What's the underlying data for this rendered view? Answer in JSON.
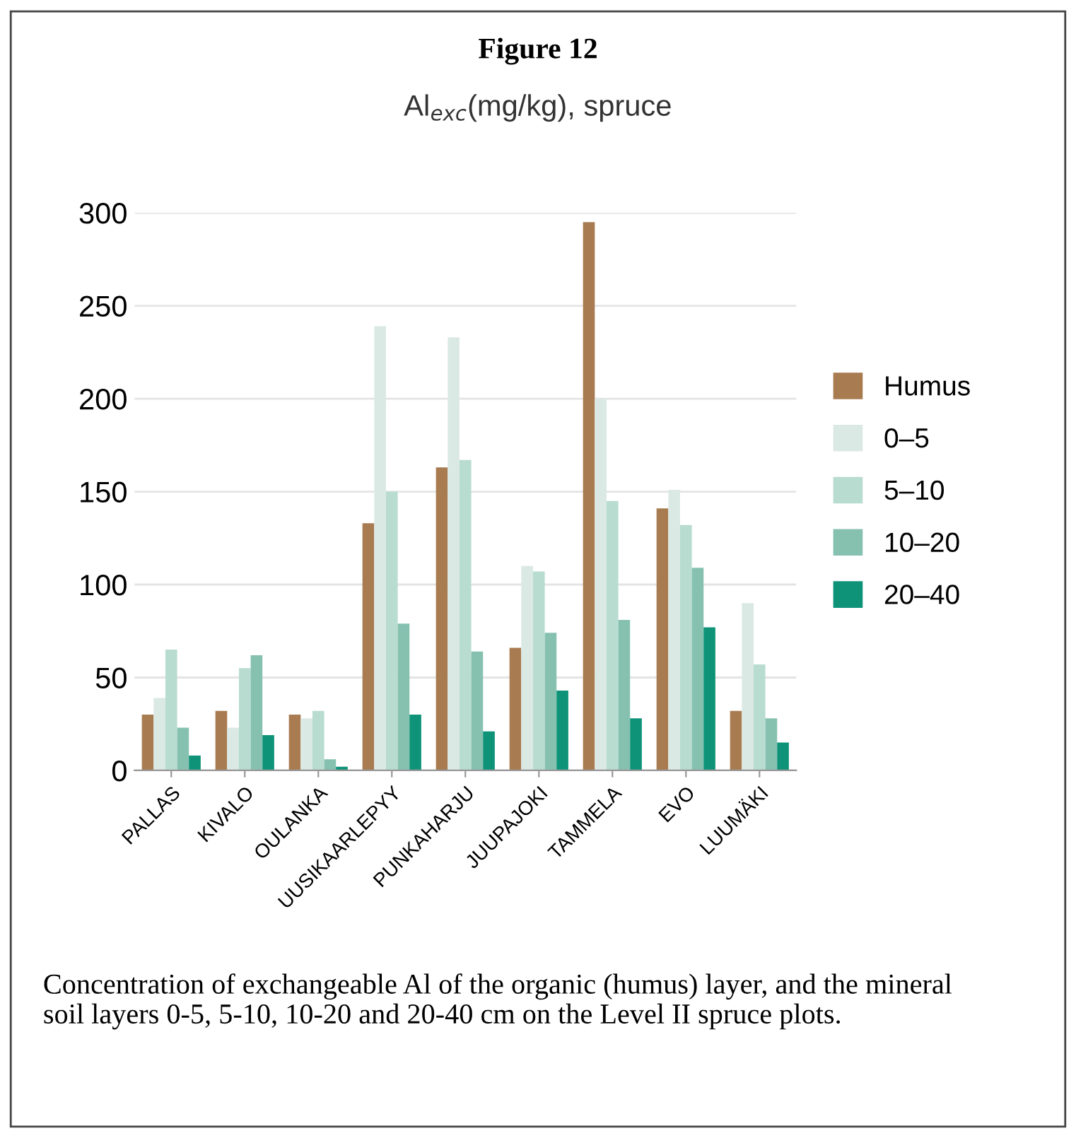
{
  "chart_data": {
    "type": "bar",
    "title": "Figure 12",
    "subtitle": "Al$_{exc}$(mg/kg), spruce",
    "categories": [
      "PALLAS",
      "KIVALO",
      "OULANKA",
      "UUSIKAARLEPYY",
      "PUNKAHARJU",
      "JUUPAJOKI",
      "TAMMELA",
      "EVO",
      "LUUMÄKI"
    ],
    "series": [
      {
        "name": "Humus",
        "color": "#a87b50",
        "values": [
          30,
          32,
          30,
          133,
          163,
          66,
          295,
          141,
          32
        ]
      },
      {
        "name": "0–5",
        "color": "#dbe9e4",
        "values": [
          39,
          23,
          28,
          239,
          233,
          110,
          200,
          151,
          90
        ]
      },
      {
        "name": "5–10",
        "color": "#b8dcd0",
        "values": [
          65,
          55,
          32,
          150,
          167,
          107,
          145,
          132,
          57
        ]
      },
      {
        "name": "10–20",
        "color": "#86c1b0",
        "values": [
          23,
          62,
          6,
          79,
          64,
          74,
          81,
          109,
          28
        ]
      },
      {
        "name": "20–40",
        "color": "#0e9378",
        "values": [
          8,
          19,
          2,
          30,
          21,
          43,
          28,
          77,
          15
        ]
      }
    ],
    "ylim": [
      0,
      300
    ],
    "yticks": [
      0,
      50,
      100,
      150,
      200,
      250,
      300
    ],
    "grid": "y",
    "legend": "right",
    "annotations": [
      "Concentration of exchangeable Al of the organic (humus) layer, and the mineral soil layers 0-5, 5-10, 10-20 and 20-40 cm on the Level II spruce plots."
    ]
  }
}
